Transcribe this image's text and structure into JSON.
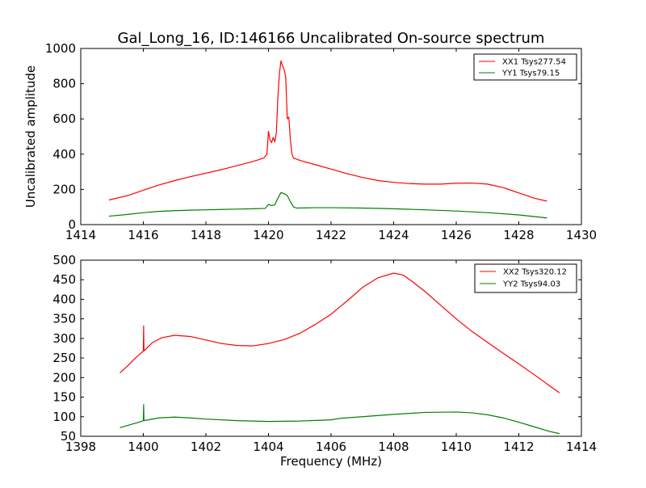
{
  "chart_data": [
    {
      "type": "line",
      "title": "Gal_Long_16, ID:146166 Uncalibrated On-source spectrum",
      "xlabel": "",
      "ylabel": "Uncalibrated amplitude",
      "xlim": [
        1414,
        1430
      ],
      "ylim": [
        0,
        1000
      ],
      "xticks": [
        1414,
        1416,
        1418,
        1420,
        1422,
        1424,
        1426,
        1428,
        1430
      ],
      "yticks": [
        0,
        200,
        400,
        600,
        800,
        1000
      ],
      "legend_position": "top-right",
      "series": [
        {
          "name": "XX1 Tsys277.54",
          "color": "#ff0000",
          "x": [
            1414.9,
            1415.5,
            1416.0,
            1416.5,
            1417.0,
            1417.5,
            1418.0,
            1418.5,
            1419.0,
            1419.5,
            1419.85,
            1419.95,
            1420.0,
            1420.05,
            1420.1,
            1420.15,
            1420.2,
            1420.25,
            1420.3,
            1420.35,
            1420.4,
            1420.45,
            1420.5,
            1420.55,
            1420.6,
            1420.65,
            1420.7,
            1420.75,
            1420.8,
            1420.85,
            1420.9,
            1421.0,
            1421.5,
            1422.0,
            1422.5,
            1423.0,
            1423.5,
            1424.0,
            1424.5,
            1425.0,
            1425.5,
            1426.0,
            1426.5,
            1427.0,
            1427.5,
            1428.0,
            1428.5,
            1428.9
          ],
          "y": [
            140,
            165,
            195,
            225,
            250,
            272,
            292,
            312,
            335,
            358,
            378,
            400,
            530,
            480,
            465,
            495,
            470,
            520,
            720,
            860,
            930,
            900,
            880,
            840,
            600,
            610,
            480,
            400,
            378,
            375,
            372,
            365,
            340,
            315,
            290,
            268,
            250,
            240,
            233,
            230,
            230,
            235,
            236,
            230,
            210,
            180,
            150,
            133
          ]
        },
        {
          "name": "YY1 Tsys79.15",
          "color": "#008000",
          "x": [
            1414.9,
            1415.5,
            1416.0,
            1416.5,
            1417.0,
            1417.5,
            1418.0,
            1418.5,
            1419.0,
            1419.5,
            1419.9,
            1420.0,
            1420.1,
            1420.2,
            1420.3,
            1420.4,
            1420.5,
            1420.6,
            1420.7,
            1420.8,
            1420.9,
            1421.5,
            1422.0,
            1423.0,
            1424.0,
            1425.0,
            1426.0,
            1427.0,
            1428.0,
            1428.9
          ],
          "y": [
            48,
            58,
            68,
            75,
            79,
            82,
            84,
            86,
            88,
            90,
            92,
            115,
            108,
            112,
            150,
            182,
            176,
            165,
            130,
            100,
            94,
            96,
            96,
            94,
            90,
            84,
            77,
            68,
            55,
            38
          ]
        }
      ]
    },
    {
      "type": "line",
      "title": "",
      "xlabel": "Frequency (MHz)",
      "ylabel": "",
      "xlim": [
        1398,
        1414
      ],
      "ylim": [
        50,
        500
      ],
      "xticks": [
        1398,
        1400,
        1402,
        1404,
        1406,
        1408,
        1410,
        1412,
        1414
      ],
      "yticks": [
        50,
        100,
        150,
        200,
        250,
        300,
        350,
        400,
        450,
        500
      ],
      "legend_position": "top-right",
      "series": [
        {
          "name": "XX2 Tsys320.12",
          "color": "#ff0000",
          "x": [
            1399.25,
            1399.5,
            1399.75,
            1400.0,
            1400.01,
            1400.02,
            1400.3,
            1400.6,
            1401.0,
            1401.5,
            1402.0,
            1402.5,
            1403.0,
            1403.5,
            1404.0,
            1404.5,
            1405.0,
            1405.5,
            1406.0,
            1406.5,
            1407.0,
            1407.5,
            1408.0,
            1408.3,
            1408.6,
            1409.0,
            1409.5,
            1410.0,
            1410.5,
            1411.0,
            1411.5,
            1412.0,
            1412.5,
            1413.0,
            1413.3
          ],
          "y": [
            212,
            230,
            250,
            268,
            332,
            268,
            290,
            302,
            308,
            305,
            296,
            287,
            282,
            281,
            287,
            297,
            313,
            336,
            362,
            395,
            430,
            455,
            467,
            462,
            445,
            420,
            385,
            350,
            318,
            290,
            262,
            235,
            207,
            178,
            161
          ]
        },
        {
          "name": "YY2 Tsys94.03",
          "color": "#008000",
          "x": [
            1399.25,
            1399.6,
            1399.95,
            1400.0,
            1400.01,
            1400.02,
            1400.5,
            1401.0,
            1401.5,
            1402.0,
            1403.0,
            1404.0,
            1405.0,
            1406.0,
            1406.3,
            1407.0,
            1408.0,
            1409.0,
            1410.0,
            1410.5,
            1411.0,
            1411.5,
            1412.0,
            1412.5,
            1413.0,
            1413.3
          ],
          "y": [
            72,
            80,
            88,
            90,
            131,
            90,
            97,
            99,
            97,
            94,
            90,
            88,
            89,
            92,
            96,
            100,
            106,
            111,
            112,
            110,
            105,
            97,
            86,
            74,
            62,
            57
          ]
        }
      ]
    }
  ]
}
